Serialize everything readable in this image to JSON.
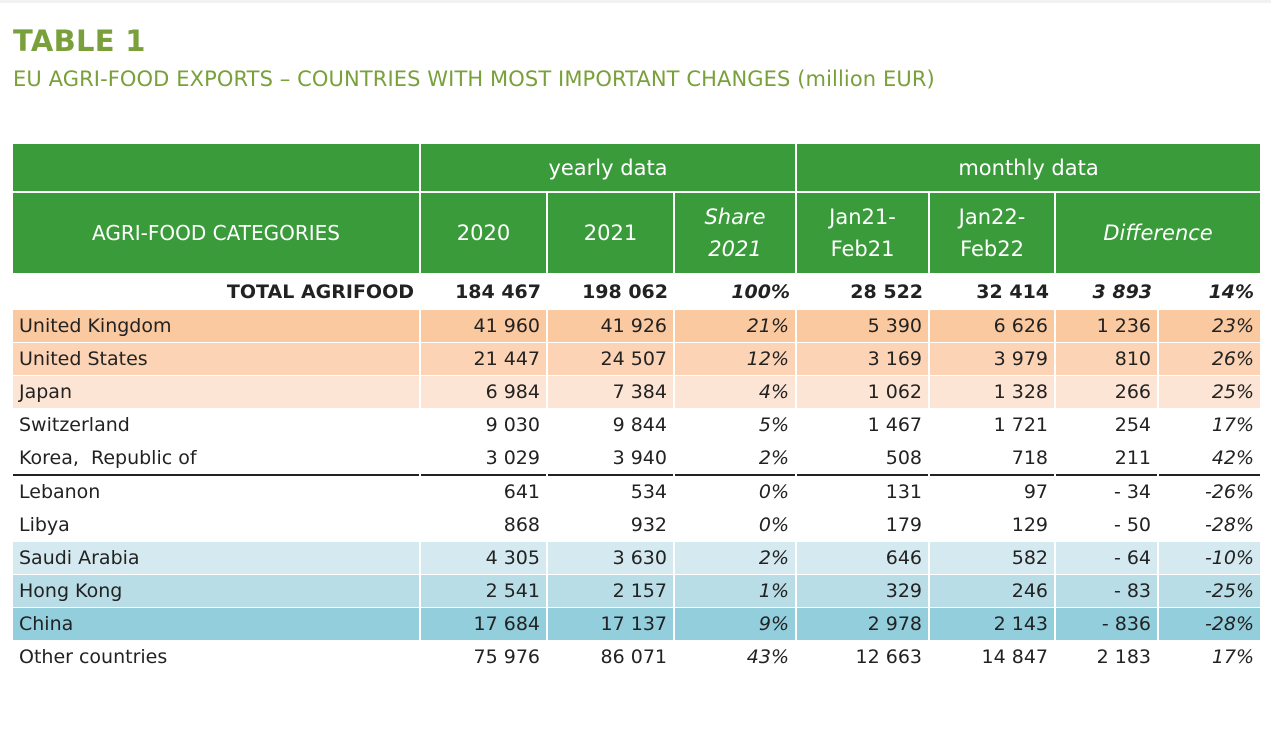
{
  "title": "TABLE 1",
  "subtitle": "EU AGRI-FOOD EXPORTS – COUNTRIES WITH MOST IMPORTANT CHANGES (million EUR)",
  "header": {
    "group_yearly": "yearly data",
    "group_monthly": "monthly data",
    "col_category": "AGRI-FOOD CATEGORIES",
    "col_2020": "2020",
    "col_2021": "2021",
    "col_share_1": "Share",
    "col_share_2": "2021",
    "col_jan21_1": "Jan21-",
    "col_jan21_2": "Feb21",
    "col_jan22_1": "Jan22-",
    "col_jan22_2": "Feb22",
    "col_difference": "Difference"
  },
  "total": {
    "name": "TOTAL AGRIFOOD",
    "v2020": "184 467",
    "v2021": "198 062",
    "share": "100%",
    "m21": "28 522",
    "m22": "32 414",
    "diff": "3 893",
    "pct": "14%"
  },
  "rows": [
    {
      "name": "United Kingdom",
      "v2020": "41 960",
      "v2021": "41 926",
      "share": "21%",
      "m21": "5 390",
      "m22": "6 626",
      "diff": "1 236",
      "pct": "23%"
    },
    {
      "name": "United States",
      "v2020": "21 447",
      "v2021": "24 507",
      "share": "12%",
      "m21": "3 169",
      "m22": "3 979",
      "diff": "810",
      "pct": "26%"
    },
    {
      "name": "Japan",
      "v2020": "6 984",
      "v2021": "7 384",
      "share": "4%",
      "m21": "1 062",
      "m22": "1 328",
      "diff": "266",
      "pct": "25%"
    },
    {
      "name": "Switzerland",
      "v2020": "9 030",
      "v2021": "9 844",
      "share": "5%",
      "m21": "1 467",
      "m22": "1 721",
      "diff": "254",
      "pct": "17%"
    },
    {
      "name": "Korea,  Republic of",
      "v2020": "3 029",
      "v2021": "3 940",
      "share": "2%",
      "m21": "508",
      "m22": "718",
      "diff": "211",
      "pct": "42%"
    },
    {
      "name": "Lebanon",
      "v2020": "641",
      "v2021": "534",
      "share": "0%",
      "m21": "131",
      "m22": "97",
      "diff": "- 34",
      "pct": "-26%"
    },
    {
      "name": "Libya",
      "v2020": "868",
      "v2021": "932",
      "share": "0%",
      "m21": "179",
      "m22": "129",
      "diff": "- 50",
      "pct": "-28%"
    },
    {
      "name": "Saudi Arabia",
      "v2020": "4 305",
      "v2021": "3 630",
      "share": "2%",
      "m21": "646",
      "m22": "582",
      "diff": "- 64",
      "pct": "-10%"
    },
    {
      "name": "Hong Kong",
      "v2020": "2 541",
      "v2021": "2 157",
      "share": "1%",
      "m21": "329",
      "m22": "246",
      "diff": "- 83",
      "pct": "-25%"
    },
    {
      "name": "China",
      "v2020": "17 684",
      "v2021": "17 137",
      "share": "9%",
      "m21": "2 978",
      "m22": "2 143",
      "diff": "- 836",
      "pct": "-28%"
    },
    {
      "name": "Other countries",
      "v2020": "75 976",
      "v2021": "86 071",
      "share": "43%",
      "m21": "12 663",
      "m22": "14 847",
      "diff": "2 183",
      "pct": "17%"
    }
  ],
  "colors": {
    "title_green": "#79a03a",
    "header_green": "#3a9b3a",
    "increase_orange": "#fbc9a0",
    "decrease_blue": "#92cedc"
  }
}
